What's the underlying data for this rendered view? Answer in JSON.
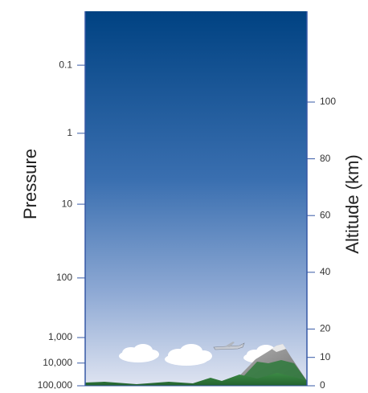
{
  "left_axis": {
    "label": "Pressure",
    "ticks": [
      {
        "label": "0.1",
        "altitude_km": 113
      },
      {
        "label": "1",
        "altitude_km": 89
      },
      {
        "label": "10",
        "altitude_km": 64
      },
      {
        "label": "100",
        "altitude_km": 38
      },
      {
        "label": "1,000",
        "altitude_km": 17
      },
      {
        "label": "10,000",
        "altitude_km": 8
      },
      {
        "label": "100,000",
        "altitude_km": 0
      }
    ]
  },
  "right_axis": {
    "label": "Altitude (km)",
    "ticks": [
      {
        "label": "100",
        "altitude_km": 100
      },
      {
        "label": "80",
        "altitude_km": 80
      },
      {
        "label": "60",
        "altitude_km": 60
      },
      {
        "label": "40",
        "altitude_km": 40
      },
      {
        "label": "20",
        "altitude_km": 20
      },
      {
        "label": "10",
        "altitude_km": 10
      },
      {
        "label": "0",
        "altitude_km": 0
      }
    ]
  },
  "colors": {
    "sky_top": "#004282",
    "sky_bottom": "#dfe4f1",
    "axis": "#3658a5",
    "ground": "#2f7a3c",
    "mountain": "#8a8a8a",
    "snow": "#e8e8e8",
    "cloud": "#ffffff"
  }
}
